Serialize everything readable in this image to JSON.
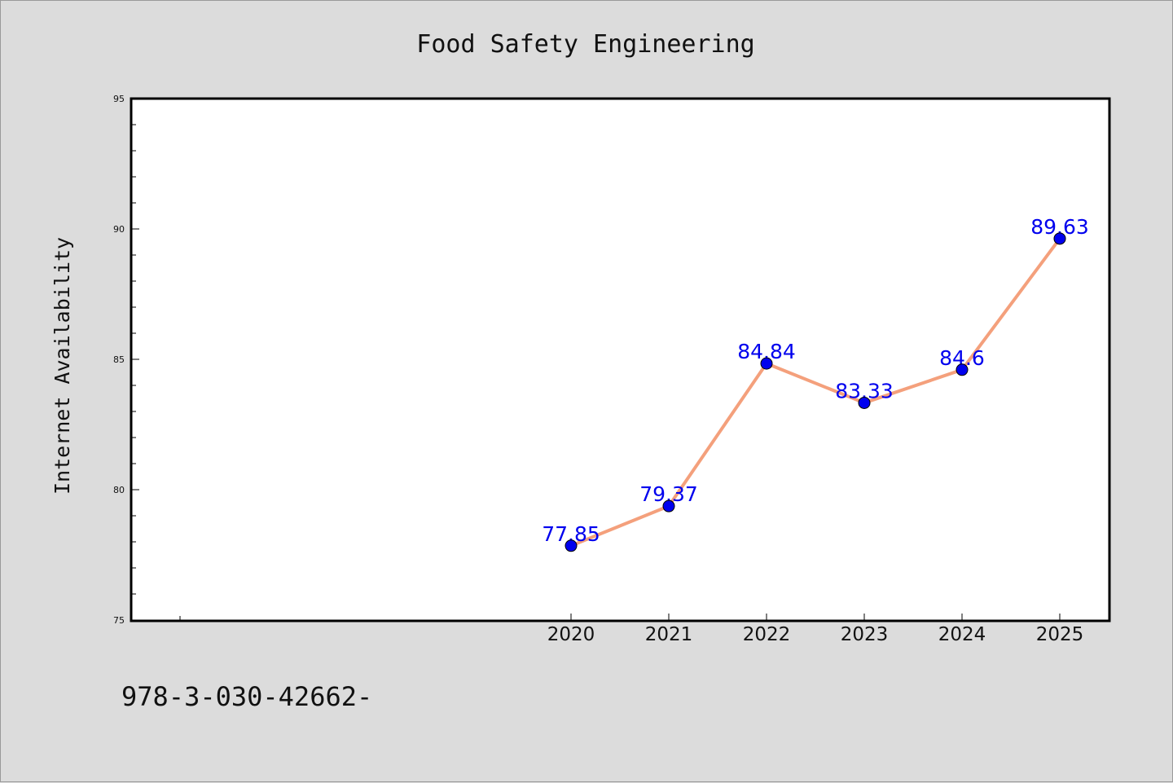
{
  "chart_data": {
    "type": "line",
    "title": "Food Safety Engineering",
    "xlabel": "",
    "ylabel": "Internet Availability",
    "categories": [
      "2020",
      "2021",
      "2022",
      "2023",
      "2024",
      "2025"
    ],
    "values": [
      77.85,
      79.37,
      84.84,
      83.33,
      84.6,
      89.63
    ],
    "data_labels": [
      "77.85",
      "79.37",
      "84.84",
      "83.33",
      "84.6",
      "89.63"
    ],
    "ylim": [
      75,
      95
    ],
    "yticks": [
      "75",
      "80",
      "85",
      "90",
      "95"
    ],
    "grid": false,
    "legend": "none",
    "line_color": "#f4a07c",
    "marker_color": "#0000ee",
    "label_color": "#0000ee"
  },
  "footnote": "978-3-030-42662-"
}
